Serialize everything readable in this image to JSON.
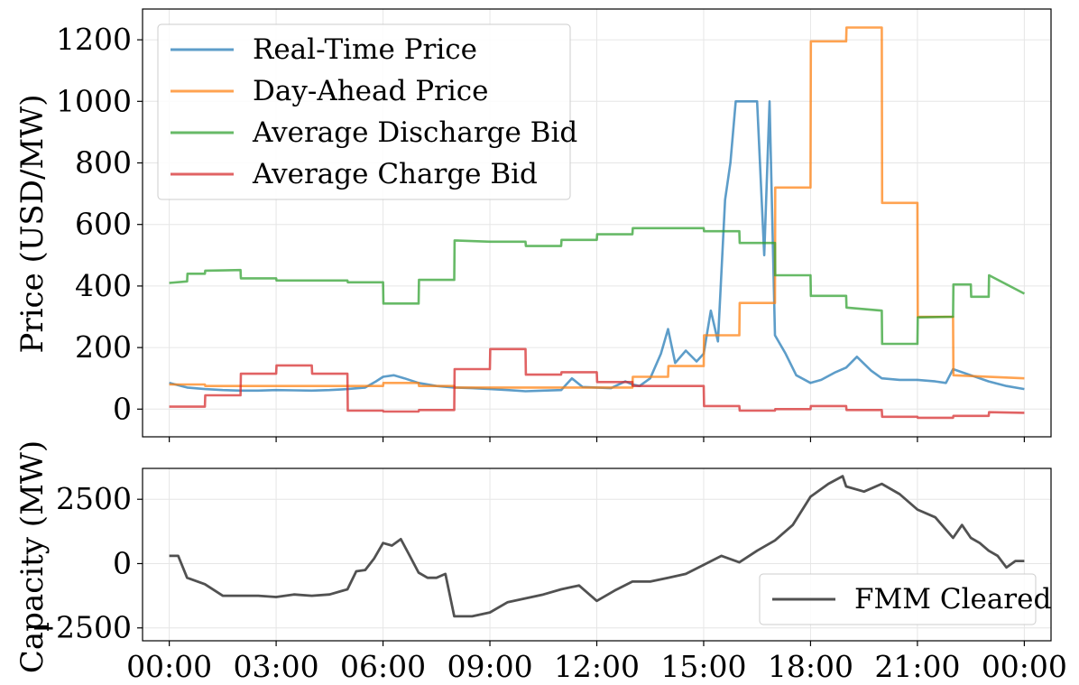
{
  "chart_data": [
    {
      "type": "line",
      "name": "price-chart",
      "ylabel": "Price (USD/MW)",
      "xlim": [
        -0.75,
        24.75
      ],
      "ylim": [
        -90,
        1300
      ],
      "yticks": [
        0,
        200,
        400,
        600,
        800,
        1000,
        1200
      ],
      "grid": true,
      "legend_position": "top-left",
      "series": [
        {
          "name": "Real-Time Price",
          "color": "#1f77b4",
          "x": [
            0,
            0.5,
            1,
            1.5,
            2,
            2.5,
            3,
            3.5,
            4,
            4.5,
            5,
            5.5,
            5.8,
            6,
            6.3,
            6.6,
            7,
            7.5,
            8,
            8.5,
            9,
            9.5,
            10,
            10.5,
            11,
            11.3,
            11.6,
            12,
            12.4,
            12.8,
            13,
            13.2,
            13.5,
            13.8,
            14,
            14.2,
            14.5,
            14.8,
            15,
            15.2,
            15.4,
            15.6,
            15.75,
            15.9,
            16.2,
            16.5,
            16.7,
            16.85,
            17,
            17.3,
            17.6,
            18,
            18.3,
            18.7,
            19,
            19.3,
            19.7,
            20,
            20.5,
            21,
            21.5,
            21.8,
            22,
            22.5,
            23,
            23.5,
            24
          ],
          "values": [
            85,
            70,
            65,
            62,
            60,
            60,
            62,
            61,
            60,
            62,
            65,
            70,
            90,
            105,
            110,
            100,
            85,
            75,
            70,
            68,
            65,
            62,
            58,
            60,
            62,
            100,
            72,
            70,
            68,
            90,
            80,
            75,
            100,
            180,
            260,
            150,
            190,
            155,
            180,
            320,
            220,
            680,
            800,
            1000,
            1000,
            1000,
            500,
            1000,
            240,
            180,
            110,
            85,
            95,
            120,
            135,
            170,
            125,
            100,
            95,
            95,
            90,
            85,
            130,
            110,
            90,
            75,
            65
          ]
        },
        {
          "name": "Day-Ahead Price",
          "color": "#ff7f0e",
          "x": [
            0,
            1,
            1.01,
            6,
            6.01,
            7,
            7.01,
            8,
            8.01,
            13,
            13.01,
            14,
            14.01,
            15,
            15.01,
            16,
            16.01,
            17,
            17.01,
            18,
            18.01,
            19,
            19.01,
            20,
            20.01,
            21,
            21.01,
            22,
            22.01,
            24
          ],
          "values": [
            80,
            80,
            75,
            75,
            85,
            85,
            75,
            75,
            70,
            70,
            105,
            105,
            140,
            140,
            240,
            240,
            345,
            345,
            720,
            720,
            1195,
            1195,
            1240,
            1240,
            670,
            670,
            300,
            300,
            110,
            100
          ]
        },
        {
          "name": "Average Discharge Bid",
          "color": "#2ca02c",
          "x": [
            0,
            0.5,
            0.51,
            1,
            1.01,
            2,
            2.01,
            3,
            3.01,
            5,
            5.01,
            6,
            6.01,
            7,
            7.01,
            8,
            8.01,
            9,
            9.01,
            10,
            10.01,
            11,
            11.01,
            12,
            12.01,
            13,
            13.01,
            15,
            15.01,
            16,
            16.01,
            17,
            17.01,
            18,
            18.01,
            19,
            19.01,
            20,
            20.01,
            21,
            21.01,
            22,
            22.01,
            22.5,
            22.51,
            23,
            23.01,
            24
          ],
          "values": [
            410,
            415,
            440,
            440,
            450,
            452,
            425,
            425,
            418,
            418,
            412,
            412,
            343,
            343,
            420,
            420,
            548,
            544,
            544,
            544,
            530,
            530,
            550,
            550,
            568,
            568,
            588,
            588,
            578,
            578,
            540,
            540,
            435,
            435,
            368,
            368,
            330,
            320,
            212,
            212,
            298,
            300,
            405,
            405,
            365,
            365,
            435,
            375
          ]
        },
        {
          "name": "Average Charge Bid",
          "color": "#d62728",
          "x": [
            0,
            1,
            1.01,
            2,
            2.01,
            3,
            3.01,
            4,
            4.01,
            5,
            5.01,
            6,
            6.01,
            7,
            7.01,
            8,
            8.01,
            9,
            9.01,
            10,
            10.01,
            11,
            11.01,
            12,
            12.01,
            13,
            13.01,
            15,
            15.01,
            16,
            16.01,
            17,
            17.01,
            18,
            18.01,
            19,
            19.01,
            20,
            20.01,
            21,
            21.01,
            22,
            22.01,
            23,
            23.01,
            24
          ],
          "values": [
            8,
            8,
            45,
            45,
            115,
            115,
            142,
            142,
            115,
            115,
            -5,
            -5,
            -8,
            -8,
            -3,
            -3,
            130,
            130,
            195,
            195,
            112,
            112,
            120,
            120,
            88,
            88,
            75,
            75,
            10,
            10,
            -5,
            -5,
            0,
            0,
            10,
            10,
            -3,
            -3,
            -25,
            -25,
            -28,
            -28,
            -22,
            -22,
            -10,
            -12
          ]
        }
      ]
    },
    {
      "type": "line",
      "name": "capacity-chart",
      "ylabel": "Capacity (MW)",
      "xlabel": "",
      "xlim": [
        -0.75,
        24.75
      ],
      "ylim": [
        -3000,
        3700
      ],
      "yticks": [
        -2500,
        0,
        2500
      ],
      "ytick_labels": [
        "−2500",
        "0",
        "2500"
      ],
      "xticks": [
        0,
        3,
        6,
        9,
        12,
        15,
        18,
        21,
        24
      ],
      "xtick_labels": [
        "00:00",
        "03:00",
        "06:00",
        "09:00",
        "12:00",
        "15:00",
        "18:00",
        "21:00",
        "00:00"
      ],
      "grid": true,
      "legend_position": "bottom-right",
      "series": [
        {
          "name": "FMM Cleared",
          "color": "#333333",
          "x": [
            0,
            0.25,
            0.5,
            1,
            1.5,
            2,
            2.5,
            3,
            3.5,
            4,
            4.5,
            5,
            5.25,
            5.5,
            5.75,
            6,
            6.25,
            6.5,
            6.75,
            7,
            7.25,
            7.5,
            7.75,
            8,
            8.5,
            9,
            9.5,
            10,
            10.5,
            11,
            11.5,
            12,
            12.5,
            13,
            13.5,
            14,
            14.5,
            15,
            15.5,
            16,
            16.5,
            17,
            17.5,
            18,
            18.5,
            18.9,
            19,
            19.5,
            20,
            20.5,
            21,
            21.5,
            22,
            22.25,
            22.5,
            22.75,
            23,
            23.25,
            23.5,
            23.75,
            24
          ],
          "values": [
            300,
            300,
            -550,
            -800,
            -1250,
            -1250,
            -1250,
            -1300,
            -1200,
            -1250,
            -1200,
            -1000,
            -300,
            -250,
            200,
            800,
            700,
            950,
            300,
            -350,
            -550,
            -550,
            -400,
            -2050,
            -2050,
            -1900,
            -1500,
            -1350,
            -1200,
            -1000,
            -850,
            -1450,
            -1050,
            -700,
            -700,
            -550,
            -400,
            -50,
            300,
            50,
            500,
            900,
            1500,
            2600,
            3100,
            3400,
            3000,
            2800,
            3100,
            2700,
            2100,
            1800,
            1000,
            1500,
            1000,
            800,
            500,
            300,
            -150,
            100,
            100
          ]
        }
      ]
    }
  ]
}
